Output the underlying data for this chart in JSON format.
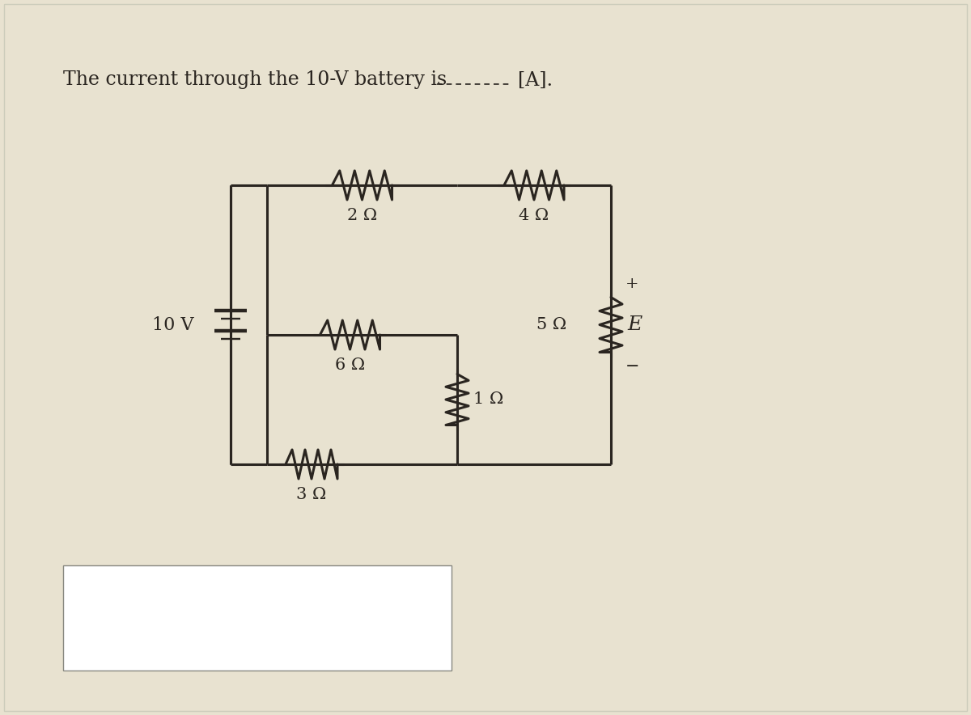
{
  "title": "The current through the 10-V battery is",
  "title_suffix": "[A].",
  "bg_color": "#e8e2d0",
  "line_color": "#2a2520",
  "text_color": "#2a2520",
  "resistor_labels": {
    "R1": "2 Ω",
    "R2": "4 Ω",
    "R3": "6 Ω",
    "R4": "1 Ω",
    "R5": "5 Ω",
    "R6": "3 Ω"
  },
  "battery_label": "10 V",
  "emf_label": "E",
  "answer_box": true,
  "lw": 2.2,
  "fs_title": 17,
  "fs_label": 15,
  "fs_emf": 16
}
